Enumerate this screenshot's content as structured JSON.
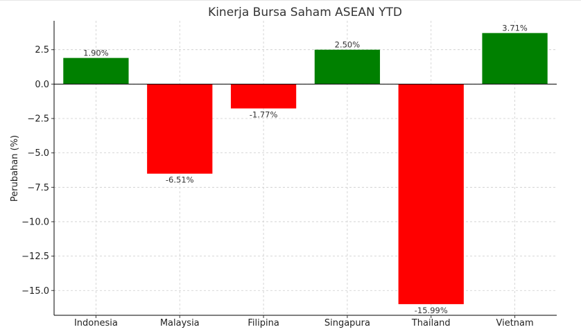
{
  "chart_data": {
    "type": "bar",
    "title": "Kinerja Bursa Saham ASEAN YTD",
    "xlabel": "",
    "ylabel": "Perubahan (%)",
    "categories": [
      "Indonesia",
      "Malaysia",
      "Filipina",
      "Singapura",
      "Thailand",
      "Vietnam"
    ],
    "values": [
      1.9,
      -6.51,
      -1.77,
      2.5,
      -15.99,
      3.71
    ],
    "data_labels": [
      "1.90%",
      "-6.51%",
      "-1.77%",
      "2.50%",
      "-15.99%",
      "3.71%"
    ],
    "yticks": [
      2.5,
      0.0,
      -2.5,
      -5.0,
      -7.5,
      -10.0,
      -12.5,
      -15.0
    ],
    "ytick_labels": [
      "2.5",
      "0.0",
      "−2.5",
      "−5.0",
      "−7.5",
      "−10.0",
      "−12.5",
      "−15.0"
    ],
    "ylim": [
      -16.8,
      4.6
    ],
    "grid": true,
    "colors": {
      "positive": "#008000",
      "negative": "#ff0000"
    }
  }
}
